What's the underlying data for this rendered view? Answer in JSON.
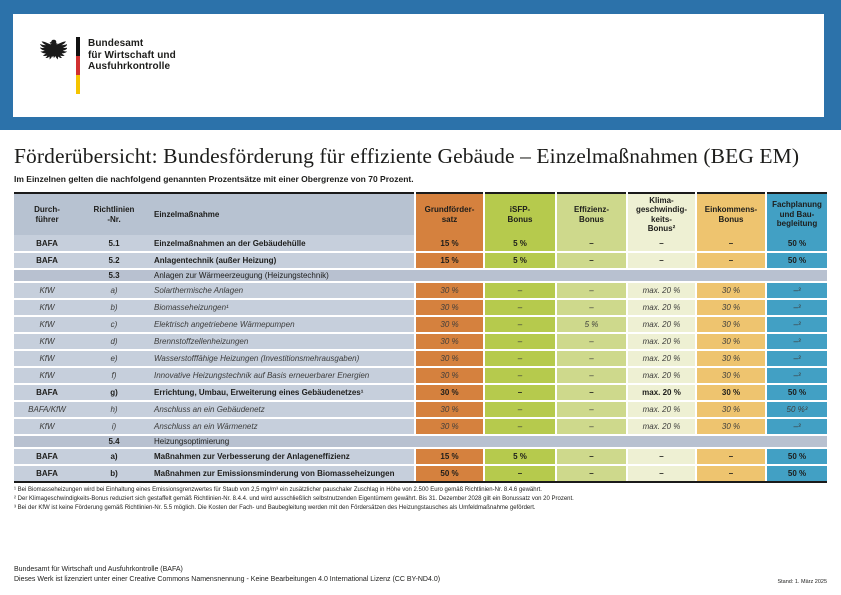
{
  "header": {
    "logo_lines": [
      "Bundesamt",
      "für Wirtschaft und",
      "Ausfuhrkontrolle"
    ]
  },
  "title": "Förderübersicht: Bundesförderung für effiziente Gebäude – Einzelmaßnahmen (BEG EM)",
  "subtitle": "Im Einzelnen gelten die nachfolgend genannten Prozentsätze mit einer Obergrenze von 70 Prozent.",
  "colors": {
    "band_blue": "#2c72aa",
    "header_label_bg": "#b7c2d1",
    "row_label_bg": "#c6cfdc",
    "section_bg": "#b8c1d0",
    "grundfoerder": "#d5813e",
    "isfp": "#b6ca4d",
    "effizienz": "#ced98c",
    "klima": "#eef0d3",
    "einkommens": "#eec46f",
    "fachplanung": "#42a0c4"
  },
  "table": {
    "columns": [
      {
        "id": "durchfuehrer",
        "label": "Durch-\nführer",
        "color": null
      },
      {
        "id": "richtlinien-nr",
        "label": "Richtlinien\n-Nr.",
        "color": null
      },
      {
        "id": "einzelmassnahme",
        "label": "Einzelmaßnahme",
        "color": null
      },
      {
        "id": "grundfoerdersatz",
        "label": "Grundförder-\nsatz",
        "color": "#d5813e"
      },
      {
        "id": "isfp-bonus",
        "label": "iSFP-\nBonus",
        "color": "#b6ca4d"
      },
      {
        "id": "effizienz-bonus",
        "label": "Effizienz-\nBonus",
        "color": "#ced98c"
      },
      {
        "id": "klimageschwindigkeits-bonus",
        "label": "Klima-\ngeschwindig-\nkeits-\nBonus²",
        "color": "#eef0d3"
      },
      {
        "id": "einkommens-bonus",
        "label": "Einkommens-\nBonus",
        "color": "#eec46f"
      },
      {
        "id": "fachplanung-baubegleitung",
        "label": "Fachplanung\nund Bau-\nbegleitung",
        "color": "#42a0c4"
      }
    ],
    "rows": [
      {
        "type": "data",
        "style": "bold",
        "durchfuehrer": "BAFA",
        "nr": "5.1",
        "massnahme": "Einzelmaßnahmen an der Gebäudehülle",
        "values": [
          "15 %",
          "5 %",
          "–",
          "–",
          "–",
          "50 %"
        ]
      },
      {
        "type": "data",
        "style": "bold",
        "durchfuehrer": "BAFA",
        "nr": "5.2",
        "massnahme": "Anlagentechnik (außer Heizung)",
        "values": [
          "15 %",
          "5 %",
          "–",
          "–",
          "–",
          "50 %"
        ]
      },
      {
        "type": "section",
        "durchfuehrer": "",
        "nr": "5.3",
        "massnahme": "Anlagen zur Wärmeerzeugung (Heizungstechnik)"
      },
      {
        "type": "data",
        "style": "italic",
        "durchfuehrer": "KfW",
        "nr": "a)",
        "massnahme": "Solarthermische Anlagen",
        "values": [
          "30 %",
          "–",
          "–",
          "max. 20 %",
          "30 %",
          "–³"
        ]
      },
      {
        "type": "data",
        "style": "italic",
        "durchfuehrer": "KfW",
        "nr": "b)",
        "massnahme": "Biomasseheizungen¹",
        "values": [
          "30 %",
          "–",
          "–",
          "max. 20 %",
          "30 %",
          "–³"
        ]
      },
      {
        "type": "data",
        "style": "italic",
        "durchfuehrer": "KfW",
        "nr": "c)",
        "massnahme": "Elektrisch angetriebene Wärmepumpen",
        "values": [
          "30 %",
          "–",
          "5 %",
          "max. 20 %",
          "30 %",
          "–³"
        ]
      },
      {
        "type": "data",
        "style": "italic",
        "durchfuehrer": "KfW",
        "nr": "d)",
        "massnahme": "Brennstoffzellenheizungen",
        "values": [
          "30 %",
          "–",
          "–",
          "max. 20 %",
          "30 %",
          "–³"
        ]
      },
      {
        "type": "data",
        "style": "italic",
        "durchfuehrer": "KfW",
        "nr": "e)",
        "massnahme": "Wasserstofffähige Heizungen (Investitionsmehrausgaben)",
        "values": [
          "30 %",
          "–",
          "–",
          "max. 20 %",
          "30 %",
          "–³"
        ]
      },
      {
        "type": "data",
        "style": "italic",
        "durchfuehrer": "KfW",
        "nr": "f)",
        "massnahme": "Innovative Heizungstechnik auf Basis erneuerbarer Energien",
        "values": [
          "30 %",
          "–",
          "–",
          "max. 20 %",
          "30 %",
          "–³"
        ]
      },
      {
        "type": "data",
        "style": "bold",
        "durchfuehrer": "BAFA",
        "nr": "g)",
        "massnahme": "Errichtung, Umbau, Erweiterung eines Gebäudenetzes¹",
        "values": [
          "30 %",
          "–",
          "–",
          "max. 20 %",
          "30 %",
          "50 %"
        ]
      },
      {
        "type": "data",
        "style": "italic",
        "durchfuehrer": "BAFA/KfW",
        "nr": "h)",
        "massnahme": "Anschluss an ein Gebäudenetz",
        "values": [
          "30 %",
          "–",
          "–",
          "max. 20 %",
          "30 %",
          "50 %³"
        ]
      },
      {
        "type": "data",
        "style": "italic",
        "durchfuehrer": "KfW",
        "nr": "i)",
        "massnahme": "Anschluss an ein Wärmenetz",
        "values": [
          "30 %",
          "–",
          "–",
          "max. 20 %",
          "30 %",
          "–³"
        ]
      },
      {
        "type": "section",
        "durchfuehrer": "",
        "nr": "5.4",
        "massnahme": "Heizungsoptimierung"
      },
      {
        "type": "data",
        "style": "bold",
        "durchfuehrer": "BAFA",
        "nr": "a)",
        "massnahme": "Maßnahmen zur Verbesserung der Anlageneffizienz",
        "values": [
          "15 %",
          "5 %",
          "–",
          "–",
          "–",
          "50 %"
        ]
      },
      {
        "type": "data",
        "style": "bold",
        "durchfuehrer": "BAFA",
        "nr": "b)",
        "massnahme": "Maßnahmen zur Emissionsminderung von Biomasseheizungen",
        "values": [
          "50 %",
          "–",
          "–",
          "–",
          "–",
          "50 %"
        ]
      }
    ]
  },
  "footnotes": [
    "¹ Bei Biomasseheizungen wird bei Einhaltung eines Emissionsgrenzwertes für Staub von 2,5 mg/m³ ein zusätzlicher pauschaler Zuschlag in Höhe von 2.500 Euro gemäß Richtlinien-Nr. 8.4.6 gewährt.",
    "² Der Klimageschwindigkeits-Bonus reduziert sich gestaffelt gemäß Richtlinien-Nr. 8.4.4. und wird ausschließlich selbstnutzenden Eigentümern gewährt. Bis 31. Dezember 2028 gilt ein Bonussatz von 20 Prozent.",
    "³ Bei der KfW ist keine Förderung gemäß Richtlinien-Nr. 5.5 möglich. Die Kosten der Fach- und Baubegleitung werden mit den Fördersätzen des Heizungstausches als Umfeldmaßnahme gefördert."
  ],
  "footer": {
    "line1": "Bundesamt für Wirtschaft und Ausfuhrkontrolle (BAFA)",
    "line2": "Dieses Werk ist lizenziert unter einer Creative Commons Namensnennung - Keine Bearbeitungen 4.0 International Lizenz (CC BY-ND4.0)",
    "stand": "Stand: 1. März 2025"
  }
}
